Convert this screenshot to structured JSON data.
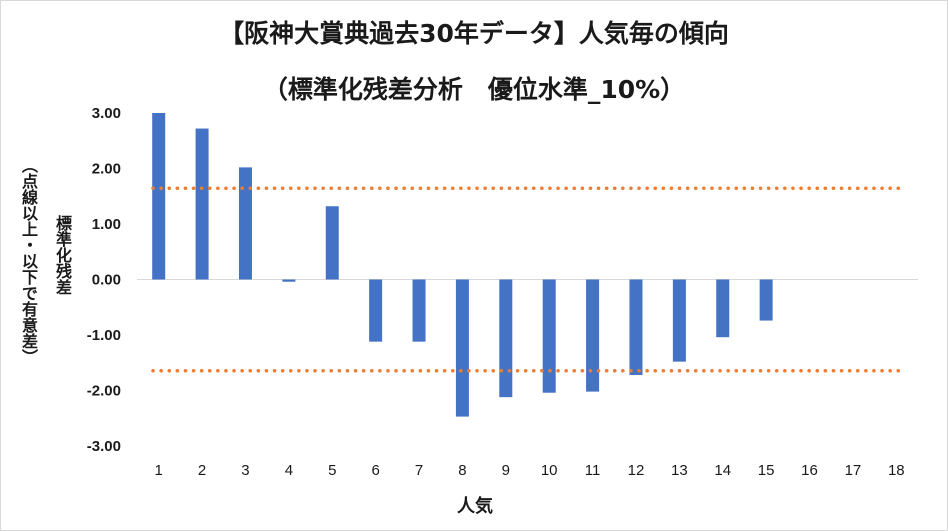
{
  "chart_data": {
    "type": "bar",
    "title": "【阪神大賞典過去30年データ】人気毎の傾向",
    "subtitle": "（標準化残差分析　優位水準_10%）",
    "xlabel": "人気",
    "ylabel_line1": "標準化残差",
    "ylabel_line2": "（点線以上・以下で有意差）",
    "categories": [
      "1",
      "2",
      "3",
      "4",
      "5",
      "6",
      "7",
      "8",
      "9",
      "10",
      "11",
      "12",
      "13",
      "14",
      "15",
      "16",
      "17",
      "18"
    ],
    "values": [
      3.0,
      2.72,
      2.02,
      -0.04,
      1.32,
      -1.12,
      -1.12,
      -2.47,
      -2.12,
      -2.04,
      -2.02,
      -1.72,
      -1.48,
      -1.04,
      -0.74,
      null,
      null,
      null
    ],
    "ylim": [
      -3,
      3
    ],
    "yticks": [
      "3.00",
      "2.00",
      "1.00",
      "0.00",
      "-1.00",
      "-2.00",
      "-3.00"
    ],
    "threshold_lines": [
      1.645,
      -1.645
    ],
    "bar_color": "#4472c4",
    "threshold_color": "#ed7d31",
    "grid": false,
    "legend": false
  }
}
